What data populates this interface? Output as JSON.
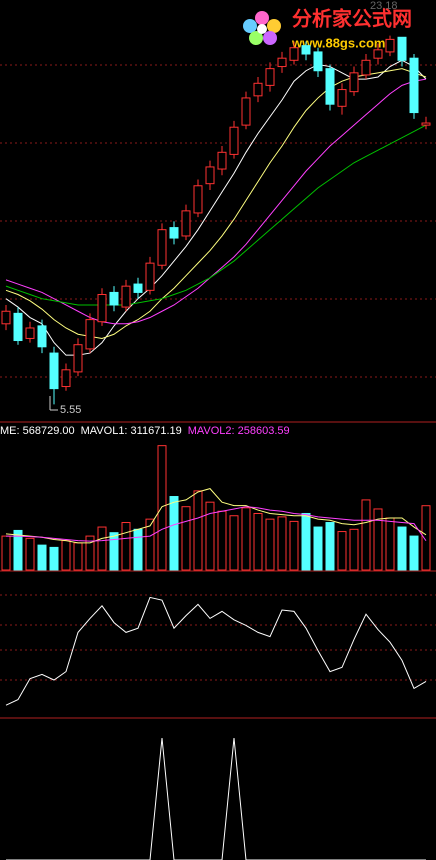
{
  "watermark": {
    "title": "分析家公式网",
    "url": "www.88gs.com"
  },
  "chart_data": [
    {
      "type": "candlestick",
      "ylim": [
        4.8,
        24.5
      ],
      "open": [
        9.4,
        9.9,
        8.7,
        9.3,
        8.0,
        6.4,
        7.1,
        8.2,
        9.5,
        10.9,
        10.2,
        11.3,
        11.0,
        12.2,
        14.0,
        13.6,
        14.7,
        16.1,
        16.8,
        17.5,
        18.9,
        20.3,
        20.8,
        21.7,
        22.0,
        22.7,
        22.4,
        21.6,
        19.8,
        20.5,
        21.3,
        22.1,
        22.4,
        23.1,
        22.1,
        18.9
      ],
      "high": [
        10.3,
        10.2,
        9.5,
        9.6,
        8.3,
        7.5,
        8.7,
        9.9,
        11.1,
        11.2,
        11.5,
        11.6,
        12.6,
        14.2,
        14.3,
        15.1,
        16.3,
        17.2,
        17.9,
        19.1,
        20.5,
        21.2,
        21.9,
        22.4,
        22.9,
        22.9,
        22.6,
        21.8,
        20.9,
        21.7,
        22.3,
        22.8,
        23.18,
        23.1,
        22.3,
        19.3
      ],
      "low": [
        9.1,
        8.4,
        8.5,
        8.0,
        5.55,
        6.2,
        6.9,
        8.0,
        9.3,
        10.0,
        10.0,
        10.6,
        10.8,
        12.0,
        13.2,
        13.4,
        14.5,
        15.8,
        16.5,
        17.3,
        18.7,
        20.0,
        20.5,
        21.4,
        21.8,
        22.0,
        21.2,
        19.6,
        19.4,
        20.3,
        21.1,
        21.8,
        22.2,
        21.7,
        19.2,
        18.7
      ],
      "close": [
        10.0,
        8.6,
        9.2,
        8.3,
        6.3,
        7.2,
        8.4,
        9.6,
        10.8,
        10.3,
        11.2,
        10.9,
        12.3,
        13.9,
        13.5,
        14.8,
        16.0,
        16.9,
        17.6,
        18.8,
        20.2,
        20.9,
        21.6,
        22.1,
        22.6,
        22.3,
        21.5,
        19.9,
        20.6,
        21.4,
        22.0,
        22.5,
        23.0,
        22.0,
        19.5,
        19.0
      ],
      "up_color": "#ff3232",
      "down_color": "#54ffff",
      "lines": [
        {
          "color": "#ffffff",
          "values": [
            10.6,
            10.2,
            9.7,
            9.4,
            8.5,
            7.9,
            7.9,
            8.0,
            8.5,
            9.3,
            10.0,
            10.6,
            11.1,
            11.7,
            12.4,
            13.1,
            13.9,
            14.8,
            15.7,
            16.6,
            17.6,
            18.5,
            19.3,
            20.1,
            21.0,
            21.5,
            21.8,
            21.7,
            21.4,
            21.1,
            21.1,
            21.2,
            21.7,
            22.0,
            21.7,
            21.1
          ]
        },
        {
          "color": "#ffff80",
          "values": [
            11.0,
            10.8,
            10.5,
            10.1,
            9.6,
            9.2,
            8.9,
            8.8,
            8.7,
            8.9,
            9.3,
            9.6,
            10.0,
            10.6,
            11.1,
            11.7,
            12.3,
            12.9,
            13.6,
            14.4,
            15.3,
            16.2,
            17.1,
            17.9,
            18.8,
            19.6,
            20.2,
            20.7,
            21.0,
            21.2,
            21.3,
            21.4,
            21.5,
            21.6,
            21.4,
            21.2
          ]
        },
        {
          "color": "#ff40ff",
          "values": [
            11.5,
            11.3,
            11.1,
            10.9,
            10.6,
            10.3,
            10.0,
            9.7,
            9.5,
            9.4,
            9.4,
            9.5,
            9.7,
            10.0,
            10.3,
            10.7,
            11.1,
            11.6,
            12.1,
            12.6,
            13.2,
            13.9,
            14.6,
            15.3,
            16.0,
            16.7,
            17.3,
            17.9,
            18.4,
            18.9,
            19.4,
            19.9,
            20.4,
            20.8,
            21.0,
            21.1
          ]
        },
        {
          "color": "#00c000",
          "values": [
            11.2,
            11.0,
            10.8,
            10.6,
            10.5,
            10.4,
            10.3,
            10.3,
            10.3,
            10.3,
            10.3,
            10.4,
            10.5,
            10.6,
            10.8,
            11.0,
            11.3,
            11.6,
            12.0,
            12.4,
            12.9,
            13.4,
            13.9,
            14.4,
            14.9,
            15.4,
            15.9,
            16.3,
            16.7,
            17.1,
            17.4,
            17.7,
            18.0,
            18.3,
            18.6,
            18.9
          ]
        }
      ]
    },
    {
      "type": "bar",
      "ylim": [
        0,
        1150000
      ],
      "legend": [
        {
          "text": "ME: 568729.00",
          "color": "#ffffff"
        },
        {
          "text": "MAVOL1: 311671.19",
          "color": "#ffffff"
        },
        {
          "text": "MAVOL2: 258603.59",
          "color": "#ff40ff"
        }
      ],
      "values": [
        300000,
        350000,
        280000,
        220000,
        200000,
        260000,
        240000,
        300000,
        380000,
        330000,
        420000,
        360000,
        450000,
        1100000,
        650000,
        560000,
        700000,
        600000,
        520000,
        480000,
        550000,
        500000,
        450000,
        470000,
        430000,
        500000,
        380000,
        420000,
        340000,
        360000,
        620000,
        540000,
        460000,
        380000,
        300000,
        568729
      ],
      "lines": [
        {
          "color": "#ffff80",
          "values": [
            320000,
            310000,
            300000,
            290000,
            270000,
            260000,
            240000,
            240000,
            280000,
            300000,
            330000,
            360000,
            390000,
            560000,
            600000,
            620000,
            690000,
            720000,
            600000,
            570000,
            570000,
            530000,
            500000,
            490000,
            480000,
            480000,
            450000,
            440000,
            410000,
            400000,
            420000,
            450000,
            460000,
            460000,
            380000,
            311671.19
          ]
        },
        {
          "color": "#ff40ff",
          "values": [
            300000,
            300000,
            295000,
            290000,
            280000,
            270000,
            260000,
            255000,
            260000,
            270000,
            280000,
            290000,
            300000,
            360000,
            400000,
            430000,
            460000,
            500000,
            520000,
            540000,
            560000,
            550000,
            530000,
            520000,
            500000,
            490000,
            470000,
            460000,
            450000,
            440000,
            440000,
            440000,
            430000,
            420000,
            410000,
            258603.59
          ]
        }
      ]
    },
    {
      "type": "line",
      "ylim": [
        0,
        100
      ],
      "color": "#ffffff",
      "values": [
        7,
        11,
        26,
        29,
        25,
        31,
        59,
        69,
        78,
        66,
        59,
        62,
        84,
        82,
        62,
        71,
        79,
        69,
        74,
        68,
        64,
        59,
        56,
        75,
        74,
        62,
        46,
        31,
        34,
        54,
        72,
        61,
        52,
        39,
        19,
        24
      ]
    },
    {
      "type": "line",
      "ylim": [
        0,
        1
      ],
      "color": "#ffffff",
      "values": [
        0,
        0,
        0,
        0,
        0,
        0,
        0,
        0,
        0,
        0,
        0,
        0,
        0,
        1,
        0,
        0,
        0,
        0,
        0,
        1,
        0,
        0,
        0,
        0,
        0,
        0,
        0,
        0,
        0,
        0,
        0,
        0,
        0,
        0,
        0,
        0
      ]
    }
  ]
}
